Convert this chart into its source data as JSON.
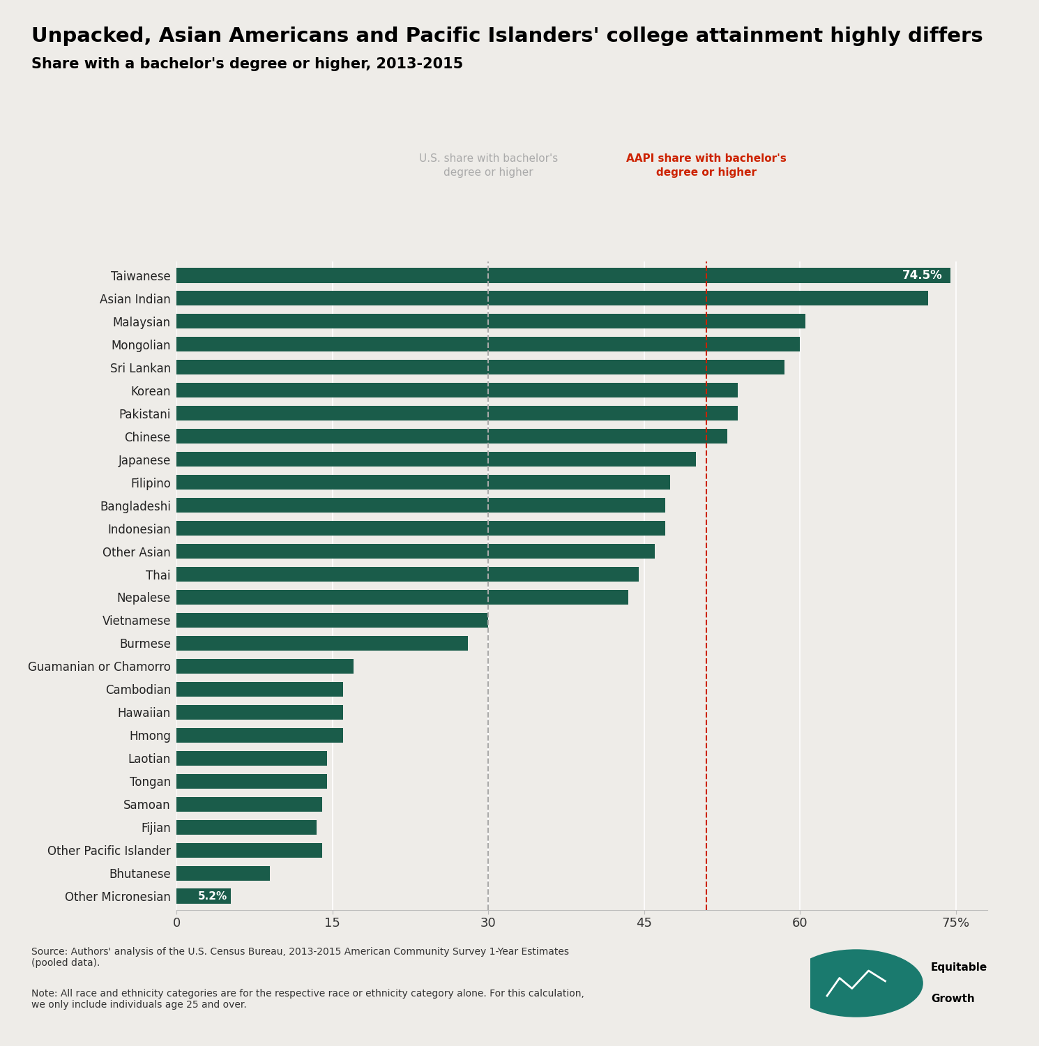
{
  "title": "Unpacked, Asian Americans and Pacific Islanders' college attainment highly differs",
  "subtitle": "Share with a bachelor's degree or higher, 2013-2015",
  "categories": [
    "Taiwanese",
    "Asian Indian",
    "Malaysian",
    "Mongolian",
    "Sri Lankan",
    "Korean",
    "Pakistani",
    "Chinese",
    "Japanese",
    "Filipino",
    "Bangladeshi",
    "Indonesian",
    "Other Asian",
    "Thai",
    "Nepalese",
    "Vietnamese",
    "Burmese",
    "Guamanian or Chamorro",
    "Cambodian",
    "Hawaiian",
    "Hmong",
    "Laotian",
    "Tongan",
    "Samoan",
    "Fijian",
    "Other Pacific Islander",
    "Bhutanese",
    "Other Micronesian"
  ],
  "values": [
    74.5,
    72.3,
    60.5,
    60.0,
    58.5,
    54.0,
    54.0,
    53.0,
    50.0,
    47.5,
    47.0,
    47.0,
    46.0,
    44.5,
    43.5,
    30.0,
    28.0,
    17.0,
    16.0,
    16.0,
    16.0,
    14.5,
    14.5,
    14.0,
    13.5,
    14.0,
    9.0,
    5.2
  ],
  "bar_color": "#1a5c4a",
  "us_line": 30.0,
  "aapi_line": 51.0,
  "us_line_color": "#aaaaaa",
  "aapi_line_color": "#cc2200",
  "xlim": [
    0,
    78
  ],
  "xticks": [
    0,
    15,
    30,
    45,
    60,
    75
  ],
  "xticklabels": [
    "0",
    "15",
    "30",
    "45",
    "60",
    "75%"
  ],
  "background_color": "#eeece8",
  "bar_height": 0.65,
  "label_74": "74.5%",
  "label_52": "5.2%",
  "source_text": "Source: Authors' analysis of the U.S. Census Bureau, 2013-2015 American Community Survey 1-Year Estimates\n(pooled data).",
  "note_text": "Note: All race and ethnicity categories are for the respective race or ethnicity category alone. For this calculation,\nwe only include individuals age 25 and over.",
  "us_label": "U.S. share with bachelor's\ndegree or higher",
  "aapi_label": "AAPI share with bachelor's\ndegree or higher"
}
